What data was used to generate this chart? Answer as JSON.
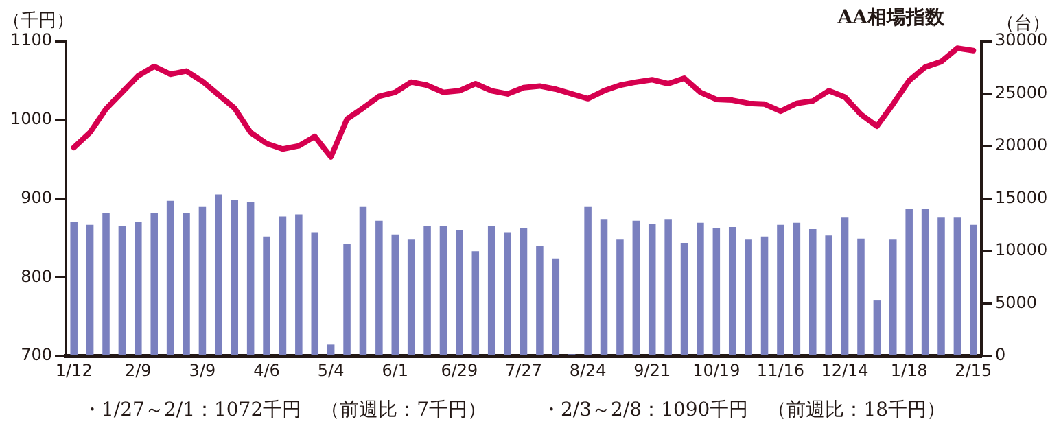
{
  "chart_data": {
    "type": "bar",
    "title": "AA相場指数",
    "ylabel": "（千円）",
    "y2label": "（台）",
    "categories": [
      "1/12",
      null,
      null,
      null,
      "2/9",
      null,
      null,
      null,
      "3/9",
      null,
      null,
      null,
      "4/6",
      null,
      null,
      null,
      "5/4",
      null,
      null,
      null,
      "6/1",
      null,
      null,
      null,
      "6/29",
      null,
      null,
      null,
      "7/27",
      null,
      null,
      null,
      "8/24",
      null,
      null,
      null,
      "9/21",
      null,
      null,
      null,
      "10/19",
      null,
      null,
      null,
      "11/16",
      null,
      null,
      null,
      "12/14",
      null,
      null,
      null,
      "1/18",
      null,
      null,
      null,
      "2/15"
    ],
    "series": [
      {
        "axis": "y2",
        "color": "#7a80bf",
        "values": [
          12800,
          12500,
          13600,
          12400,
          12800,
          13600,
          14800,
          13600,
          14200,
          15400,
          14900,
          14700,
          11400,
          13300,
          13500,
          11800,
          1100,
          10700,
          14200,
          12900,
          11600,
          11100,
          12400,
          12400,
          12000,
          10000,
          12400,
          11800,
          12200,
          10500,
          9300,
          200,
          14200,
          13000,
          11100,
          12900,
          12600,
          13000,
          10800,
          12700,
          12200,
          12300,
          11100,
          11400,
          12500,
          12700,
          12100,
          11500,
          13200,
          11200,
          5300,
          11100,
          14000,
          14000,
          13200,
          13200,
          12500
        ]
      },
      {
        "type": "line",
        "axis": "y",
        "color": "#d6004f",
        "values": [
          965,
          984,
          1014,
          1035,
          1056,
          1068,
          1058,
          1062,
          1049,
          1032,
          1015,
          984,
          970,
          963,
          967,
          979,
          953,
          1001,
          1015,
          1030,
          1035,
          1048,
          1044,
          1035,
          1037,
          1046,
          1037,
          1033,
          1041,
          1043,
          1039,
          1033,
          1027,
          1037,
          1044,
          1048,
          1051,
          1046,
          1053,
          1035,
          1026,
          1025,
          1021,
          1020,
          1011,
          1021,
          1024,
          1037,
          1029,
          1007,
          992,
          1020,
          1050,
          1067,
          1074,
          1091,
          1088
        ]
      }
    ],
    "ylim": [
      700,
      1100
    ],
    "yticks": [
      700,
      800,
      900,
      1000,
      1100
    ],
    "y2lim": [
      0,
      30000
    ],
    "y2ticks": [
      0,
      5000,
      10000,
      15000,
      20000,
      25000,
      30000
    ],
    "grid": false,
    "legend": false,
    "marker": "none",
    "annotations": [
      "・1/27～2/1：1072千円　（前週比：7千円）",
      "・2/3～2/8：1090千円　（前週比：18千円）"
    ]
  }
}
